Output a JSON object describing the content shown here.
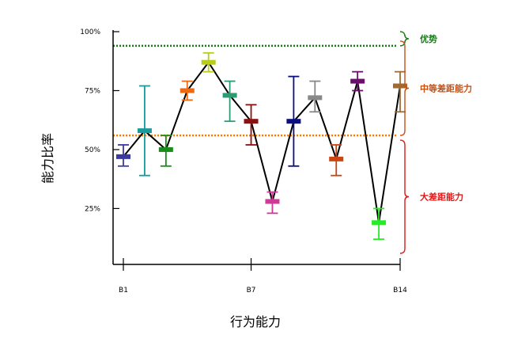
{
  "chart_data": {
    "type": "line",
    "title": "",
    "xlabel": "行为能力",
    "ylabel": "能力比率",
    "x_tick_labels": [
      "B1",
      "B7",
      "B14"
    ],
    "y_tick_labels": [
      "25%",
      "50%",
      "75%",
      "100%"
    ],
    "y_ticks": [
      25,
      50,
      75,
      100
    ],
    "xlim": [
      0.5,
      14.5
    ],
    "ylim": [
      6,
      100
    ],
    "grid": false,
    "legend": "none",
    "points": [
      {
        "x": 1,
        "y": 47,
        "low": 43,
        "high": 52,
        "color": "#3a3aa0"
      },
      {
        "x": 2,
        "y": 58,
        "low": 39,
        "high": 77,
        "color": "#1a9a9a"
      },
      {
        "x": 3,
        "y": 50,
        "low": 43,
        "high": 56,
        "color": "#1a8c1a"
      },
      {
        "x": 4,
        "y": 75,
        "low": 71,
        "high": 79,
        "color": "#ee6a12"
      },
      {
        "x": 5,
        "y": 87,
        "low": 83,
        "high": 91,
        "color": "#b8cc1a"
      },
      {
        "x": 6,
        "y": 73,
        "low": 62,
        "high": 79,
        "color": "#2e9a72"
      },
      {
        "x": 7,
        "y": 62,
        "low": 52,
        "high": 69,
        "color": "#8c1010"
      },
      {
        "x": 8,
        "y": 28,
        "low": 23,
        "high": 32,
        "color": "#cc3c96"
      },
      {
        "x": 9,
        "y": 62,
        "low": 43,
        "high": 81,
        "color": "#0a1080"
      },
      {
        "x": 10,
        "y": 72,
        "low": 66,
        "high": 79,
        "color": "#888888"
      },
      {
        "x": 11,
        "y": 46,
        "low": 39,
        "high": 52,
        "color": "#cc4410"
      },
      {
        "x": 12,
        "y": 79,
        "low": 75,
        "high": 83,
        "color": "#6a106a"
      },
      {
        "x": 13,
        "y": 19,
        "low": 12,
        "high": 25,
        "color": "#22ee22"
      },
      {
        "x": 14,
        "y": 77,
        "low": 66,
        "high": 83,
        "color": "#a06a30"
      }
    ],
    "reference_lines": [
      {
        "y": 94,
        "color": "#1a7a1a",
        "style": "dotted"
      },
      {
        "y": 56,
        "color": "#ff7a00",
        "style": "dotted"
      }
    ],
    "zones": [
      {
        "label": "优势",
        "from": 94,
        "to": 100,
        "color": "#1a7a1a"
      },
      {
        "label": "中等差距能力",
        "from": 56,
        "to": 96,
        "color": "#c85014"
      },
      {
        "label": "大差距能力",
        "from": 6,
        "to": 54,
        "color": "#dd1a1a"
      }
    ]
  }
}
